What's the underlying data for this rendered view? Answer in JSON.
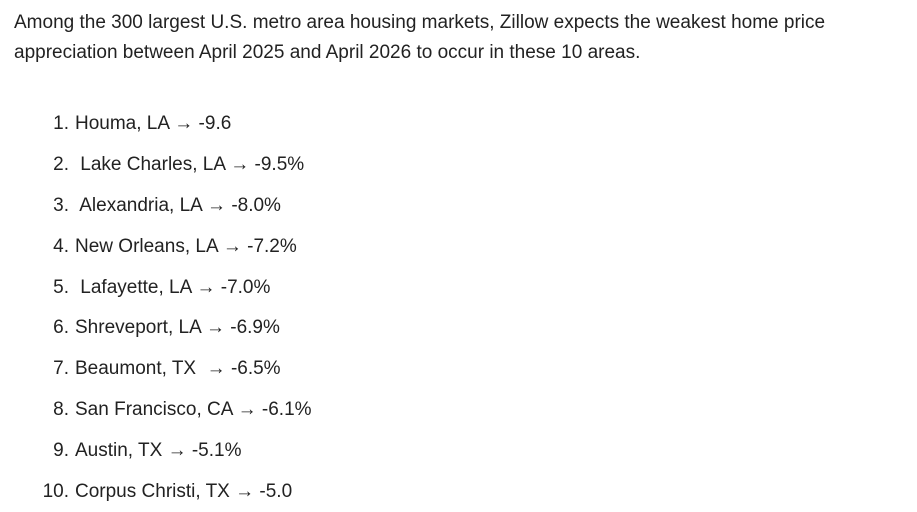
{
  "intro": "Among the 300 largest U.S. metro area housing markets, Zillow expects the weakest home price appreciation between April 2025 and April 2026 to occur in these 10 areas.",
  "items": [
    {
      "number": "1.",
      "text": "Houma, LA → -9.6"
    },
    {
      "number": "2.",
      "text": " Lake Charles, LA → -9.5%"
    },
    {
      "number": "3.",
      "text": " Alexandria, LA → -8.0%"
    },
    {
      "number": "4.",
      "text": "New Orleans, LA → -7.2%"
    },
    {
      "number": "5.",
      "text": " Lafayette, LA → -7.0%"
    },
    {
      "number": "6.",
      "text": "Shreveport, LA → -6.9%"
    },
    {
      "number": "7.",
      "text": "Beaumont, TX  → -6.5%"
    },
    {
      "number": "8.",
      "text": "San Francisco, CA → -6.1%"
    },
    {
      "number": "9.",
      "text": "Austin, TX → -5.1%"
    },
    {
      "number": "10.",
      "text": "Corpus Christi, TX → -5.0"
    }
  ]
}
